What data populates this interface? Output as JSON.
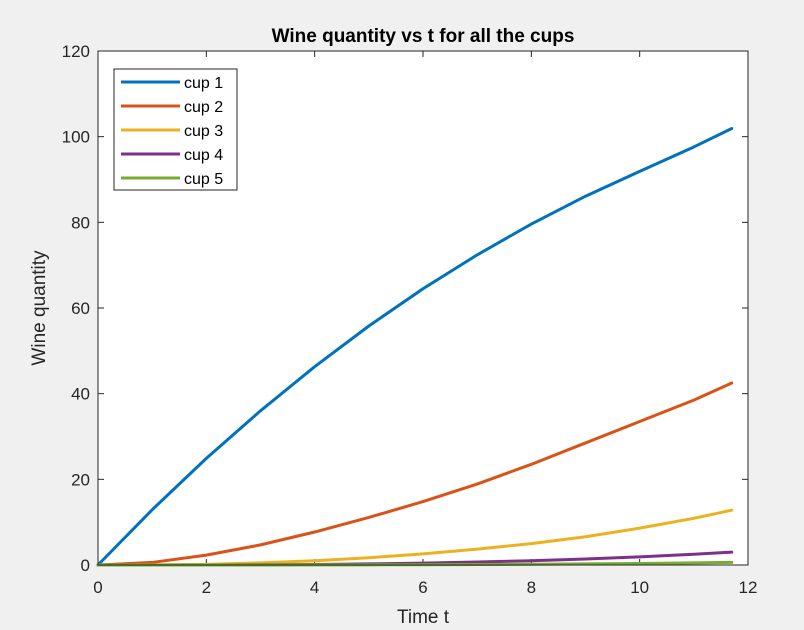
{
  "chart_data": {
    "type": "line",
    "title": "Wine quantity vs t for all the cups",
    "xlabel": "Time t",
    "ylabel": "Wine quantity",
    "xlim": [
      0,
      12
    ],
    "ylim": [
      0,
      120
    ],
    "xticks": [
      0,
      2,
      4,
      6,
      8,
      10,
      12
    ],
    "yticks": [
      0,
      20,
      40,
      60,
      80,
      100,
      120
    ],
    "grid": false,
    "legend": "top-left",
    "x": [
      0,
      1,
      2,
      3,
      4,
      5,
      6,
      7,
      8,
      9,
      10,
      11,
      11.7
    ],
    "series": [
      {
        "name": "cup 1",
        "color": "#0072bd",
        "values": [
          0,
          12.9,
          24.9,
          36.0,
          46.3,
          55.8,
          64.5,
          72.4,
          79.6,
          86.1,
          91.9,
          97.6,
          101.9
        ]
      },
      {
        "name": "cup 2",
        "color": "#d95319",
        "values": [
          0,
          0.6,
          2.3,
          4.7,
          7.7,
          11.1,
          14.8,
          18.9,
          23.5,
          28.5,
          33.5,
          38.5,
          42.5
        ]
      },
      {
        "name": "cup 3",
        "color": "#edb120",
        "values": [
          0,
          0.02,
          0.15,
          0.5,
          1.0,
          1.7,
          2.6,
          3.7,
          5.0,
          6.6,
          8.6,
          10.9,
          12.8
        ]
      },
      {
        "name": "cup 4",
        "color": "#7e2f8e",
        "values": [
          0,
          0,
          0.01,
          0.05,
          0.12,
          0.25,
          0.45,
          0.7,
          1.0,
          1.4,
          1.9,
          2.5,
          3.0
        ]
      },
      {
        "name": "cup 5",
        "color": "#77ac30",
        "values": [
          0,
          0,
          0,
          0.01,
          0.02,
          0.04,
          0.07,
          0.11,
          0.17,
          0.25,
          0.36,
          0.5,
          0.6
        ]
      }
    ]
  }
}
